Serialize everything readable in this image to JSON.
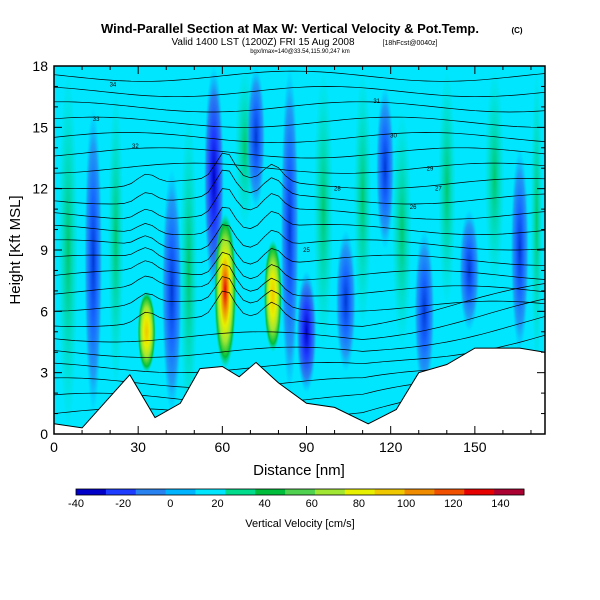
{
  "chart_data": {
    "type": "heatmap",
    "title": "Wind-Parallel Section at Max W: Vertical Velocity & Pot.Temp.",
    "copyright_mark": "(C)",
    "subtitle": "Valid 1400 LST (1200Z) FRI 15 Aug 2008",
    "subtitle_tag": "[18hFcst@0040z]",
    "subsubtitle": "bgx/lmax=140@33.54,115.90,247 km",
    "xlabel": "Distance [nm]",
    "ylabel": "Height [Kft MSL]",
    "xlim": [
      0,
      175
    ],
    "ylim": [
      0,
      18
    ],
    "x_ticks": [
      "0",
      "30",
      "60",
      "90",
      "120",
      "150"
    ],
    "y_ticks": [
      "0",
      "3",
      "6",
      "9",
      "12",
      "15",
      "18"
    ],
    "colorbar": {
      "label": "Vertical Velocity [cm/s]",
      "range": [
        -40,
        150
      ],
      "tick_labels": [
        "-40",
        "-20",
        "0",
        "20",
        "40",
        "60",
        "80",
        "100",
        "120",
        "140"
      ],
      "colors": [
        "#0000c8",
        "#1e3cff",
        "#2882f0",
        "#00b4ff",
        "#00e6ff",
        "#00dc8c",
        "#00be3c",
        "#50d250",
        "#a0e632",
        "#e6f000",
        "#f0c800",
        "#f08c00",
        "#f05000",
        "#e60000",
        "#aa0032"
      ]
    },
    "updrafts": [
      {
        "x": 61,
        "base": 3.2,
        "top": 10.8,
        "peak": 140
      },
      {
        "x": 78,
        "base": 4.0,
        "top": 9.5,
        "peak": 70
      },
      {
        "x": 33,
        "base": 3.0,
        "top": 7.0,
        "peak": 60
      }
    ],
    "downdrafts": [
      {
        "x": 57,
        "base": 7.0,
        "top": 18.0,
        "peak": -40
      },
      {
        "x": 90,
        "base": 2.0,
        "top": 8.0,
        "peak": -40
      }
    ],
    "theta_contour_labels": [
      "34",
      "33",
      "32",
      "31",
      "30",
      "29",
      "28",
      "27",
      "26",
      "25"
    ],
    "terrain": [
      {
        "x": 0,
        "h": 0.5
      },
      {
        "x": 10,
        "h": 0.3
      },
      {
        "x": 27,
        "h": 2.9
      },
      {
        "x": 33,
        "h": 1.5
      },
      {
        "x": 36,
        "h": 0.8
      },
      {
        "x": 45,
        "h": 1.5
      },
      {
        "x": 52,
        "h": 3.2
      },
      {
        "x": 60,
        "h": 3.3
      },
      {
        "x": 66,
        "h": 2.8
      },
      {
        "x": 72,
        "h": 3.5
      },
      {
        "x": 80,
        "h": 2.5
      },
      {
        "x": 90,
        "h": 1.5
      },
      {
        "x": 100,
        "h": 1.3
      },
      {
        "x": 112,
        "h": 0.5
      },
      {
        "x": 122,
        "h": 1.2
      },
      {
        "x": 130,
        "h": 3.0
      },
      {
        "x": 140,
        "h": 3.4
      },
      {
        "x": 150,
        "h": 4.2
      },
      {
        "x": 166,
        "h": 4.2
      },
      {
        "x": 175,
        "h": 4.0
      }
    ]
  }
}
